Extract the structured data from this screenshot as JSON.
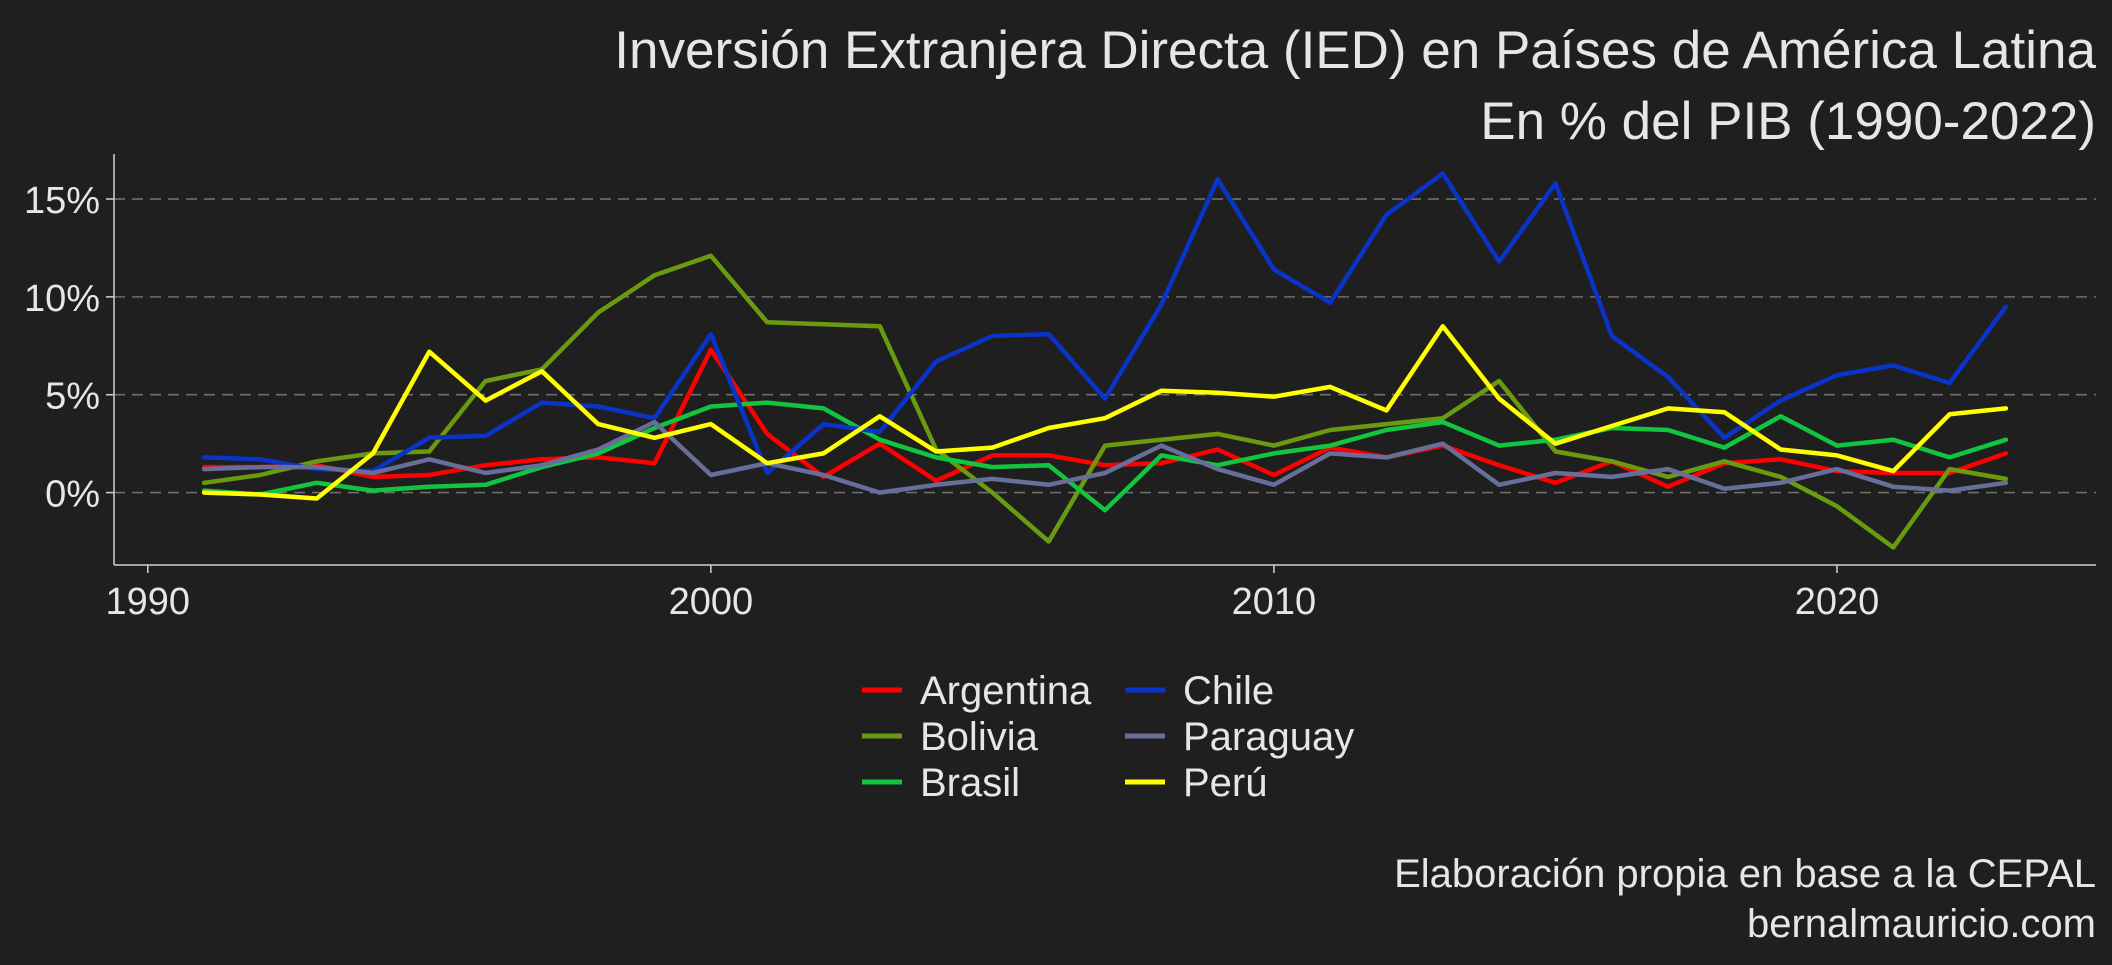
{
  "chart_data": {
    "type": "line",
    "title": "Inversión Extranjera Directa (IED) en Países de América Latina",
    "subtitle": "En % del PIB  (1990-2022)",
    "caption": [
      "Elaboración propia en base a la CEPAL",
      "bernalmauricio.com"
    ],
    "xlabel": "",
    "ylabel": "",
    "x_ticks": [
      1990,
      2000,
      2010,
      2020
    ],
    "x_tick_labels": [
      "1990",
      "2000",
      "2010",
      "2020"
    ],
    "y_ticks": [
      0,
      5,
      10,
      15
    ],
    "y_tick_labels": [
      "0%",
      "5%",
      "10%",
      "15%"
    ],
    "xlim": [
      1989.4,
      2024.6
    ],
    "ylim": [
      -3.7,
      17.3
    ],
    "grid": "horizontal dashed",
    "legend_position": "bottom",
    "x": [
      1991,
      1992,
      1993,
      1994,
      1995,
      1996,
      1997,
      1998,
      1999,
      2000,
      2001,
      2002,
      2003,
      2004,
      2005,
      2006,
      2007,
      2008,
      2009,
      2010,
      2011,
      2012,
      2013,
      2014,
      2015,
      2016,
      2017,
      2018,
      2019,
      2020,
      2021,
      2022,
      2023
    ],
    "series": [
      {
        "name": "Argentina",
        "color": "#ff0000",
        "values": [
          1.3,
          1.3,
          1.4,
          0.8,
          0.9,
          1.4,
          1.7,
          1.8,
          1.5,
          7.3,
          3.0,
          0.8,
          2.5,
          0.6,
          1.9,
          1.9,
          1.4,
          1.5,
          2.2,
          0.9,
          2.3,
          1.8,
          2.4,
          1.4,
          0.5,
          1.6,
          0.3,
          1.5,
          1.7,
          1.1,
          1.0,
          1.0,
          2.0
        ]
      },
      {
        "name": "Bolivia",
        "color": "#6a9a10",
        "values": [
          0.5,
          0.9,
          1.6,
          2.0,
          2.1,
          5.7,
          6.3,
          9.2,
          11.1,
          12.1,
          8.7,
          8.6,
          8.5,
          2.2,
          0.0,
          -2.5,
          2.4,
          2.7,
          3.0,
          2.4,
          3.2,
          3.5,
          3.8,
          5.7,
          2.1,
          1.6,
          0.8,
          1.6,
          0.8,
          -0.7,
          -2.8,
          1.2,
          0.7
        ]
      },
      {
        "name": "Brasil",
        "color": "#11c63e",
        "values": [
          0.1,
          -0.1,
          0.5,
          0.1,
          0.3,
          0.4,
          1.3,
          2.0,
          3.3,
          4.4,
          4.6,
          4.3,
          2.7,
          1.8,
          1.3,
          1.4,
          -0.9,
          1.9,
          1.4,
          2.0,
          2.4,
          3.2,
          3.6,
          2.4,
          2.7,
          3.3,
          3.2,
          2.3,
          3.9,
          2.4,
          2.7,
          1.8,
          2.7
        ]
      },
      {
        "name": "Chile",
        "color": "#0a33c8",
        "values": [
          1.8,
          1.7,
          1.2,
          1.1,
          2.8,
          2.9,
          4.6,
          4.4,
          3.8,
          8.1,
          1.0,
          3.5,
          3.1,
          6.7,
          8.0,
          8.1,
          4.8,
          9.6,
          16.0,
          11.4,
          9.7,
          14.2,
          16.3,
          11.8,
          15.8,
          8.0,
          5.9,
          2.8,
          4.7,
          6.0,
          6.5,
          5.6,
          9.5
        ]
      },
      {
        "name": "Paraguay",
        "color": "#686e9a",
        "values": [
          1.2,
          1.3,
          1.3,
          1.0,
          1.7,
          1.0,
          1.4,
          2.2,
          3.6,
          0.9,
          1.5,
          0.9,
          0.0,
          0.4,
          0.7,
          0.4,
          1.0,
          2.4,
          1.2,
          0.4,
          2.0,
          1.8,
          2.5,
          0.4,
          1.0,
          0.8,
          1.2,
          0.2,
          0.5,
          1.2,
          0.3,
          0.1,
          0.5
        ]
      },
      {
        "name": "Perú",
        "color": "#ffff00",
        "values": [
          0.0,
          -0.1,
          -0.3,
          2.0,
          7.2,
          4.7,
          6.2,
          3.5,
          2.8,
          3.5,
          1.5,
          2.0,
          3.9,
          2.1,
          2.3,
          3.3,
          3.8,
          5.2,
          5.1,
          4.9,
          5.4,
          4.2,
          8.5,
          4.8,
          2.5,
          3.4,
          4.3,
          4.1,
          2.2,
          1.9,
          1.1,
          4.0,
          4.3
        ]
      }
    ]
  }
}
